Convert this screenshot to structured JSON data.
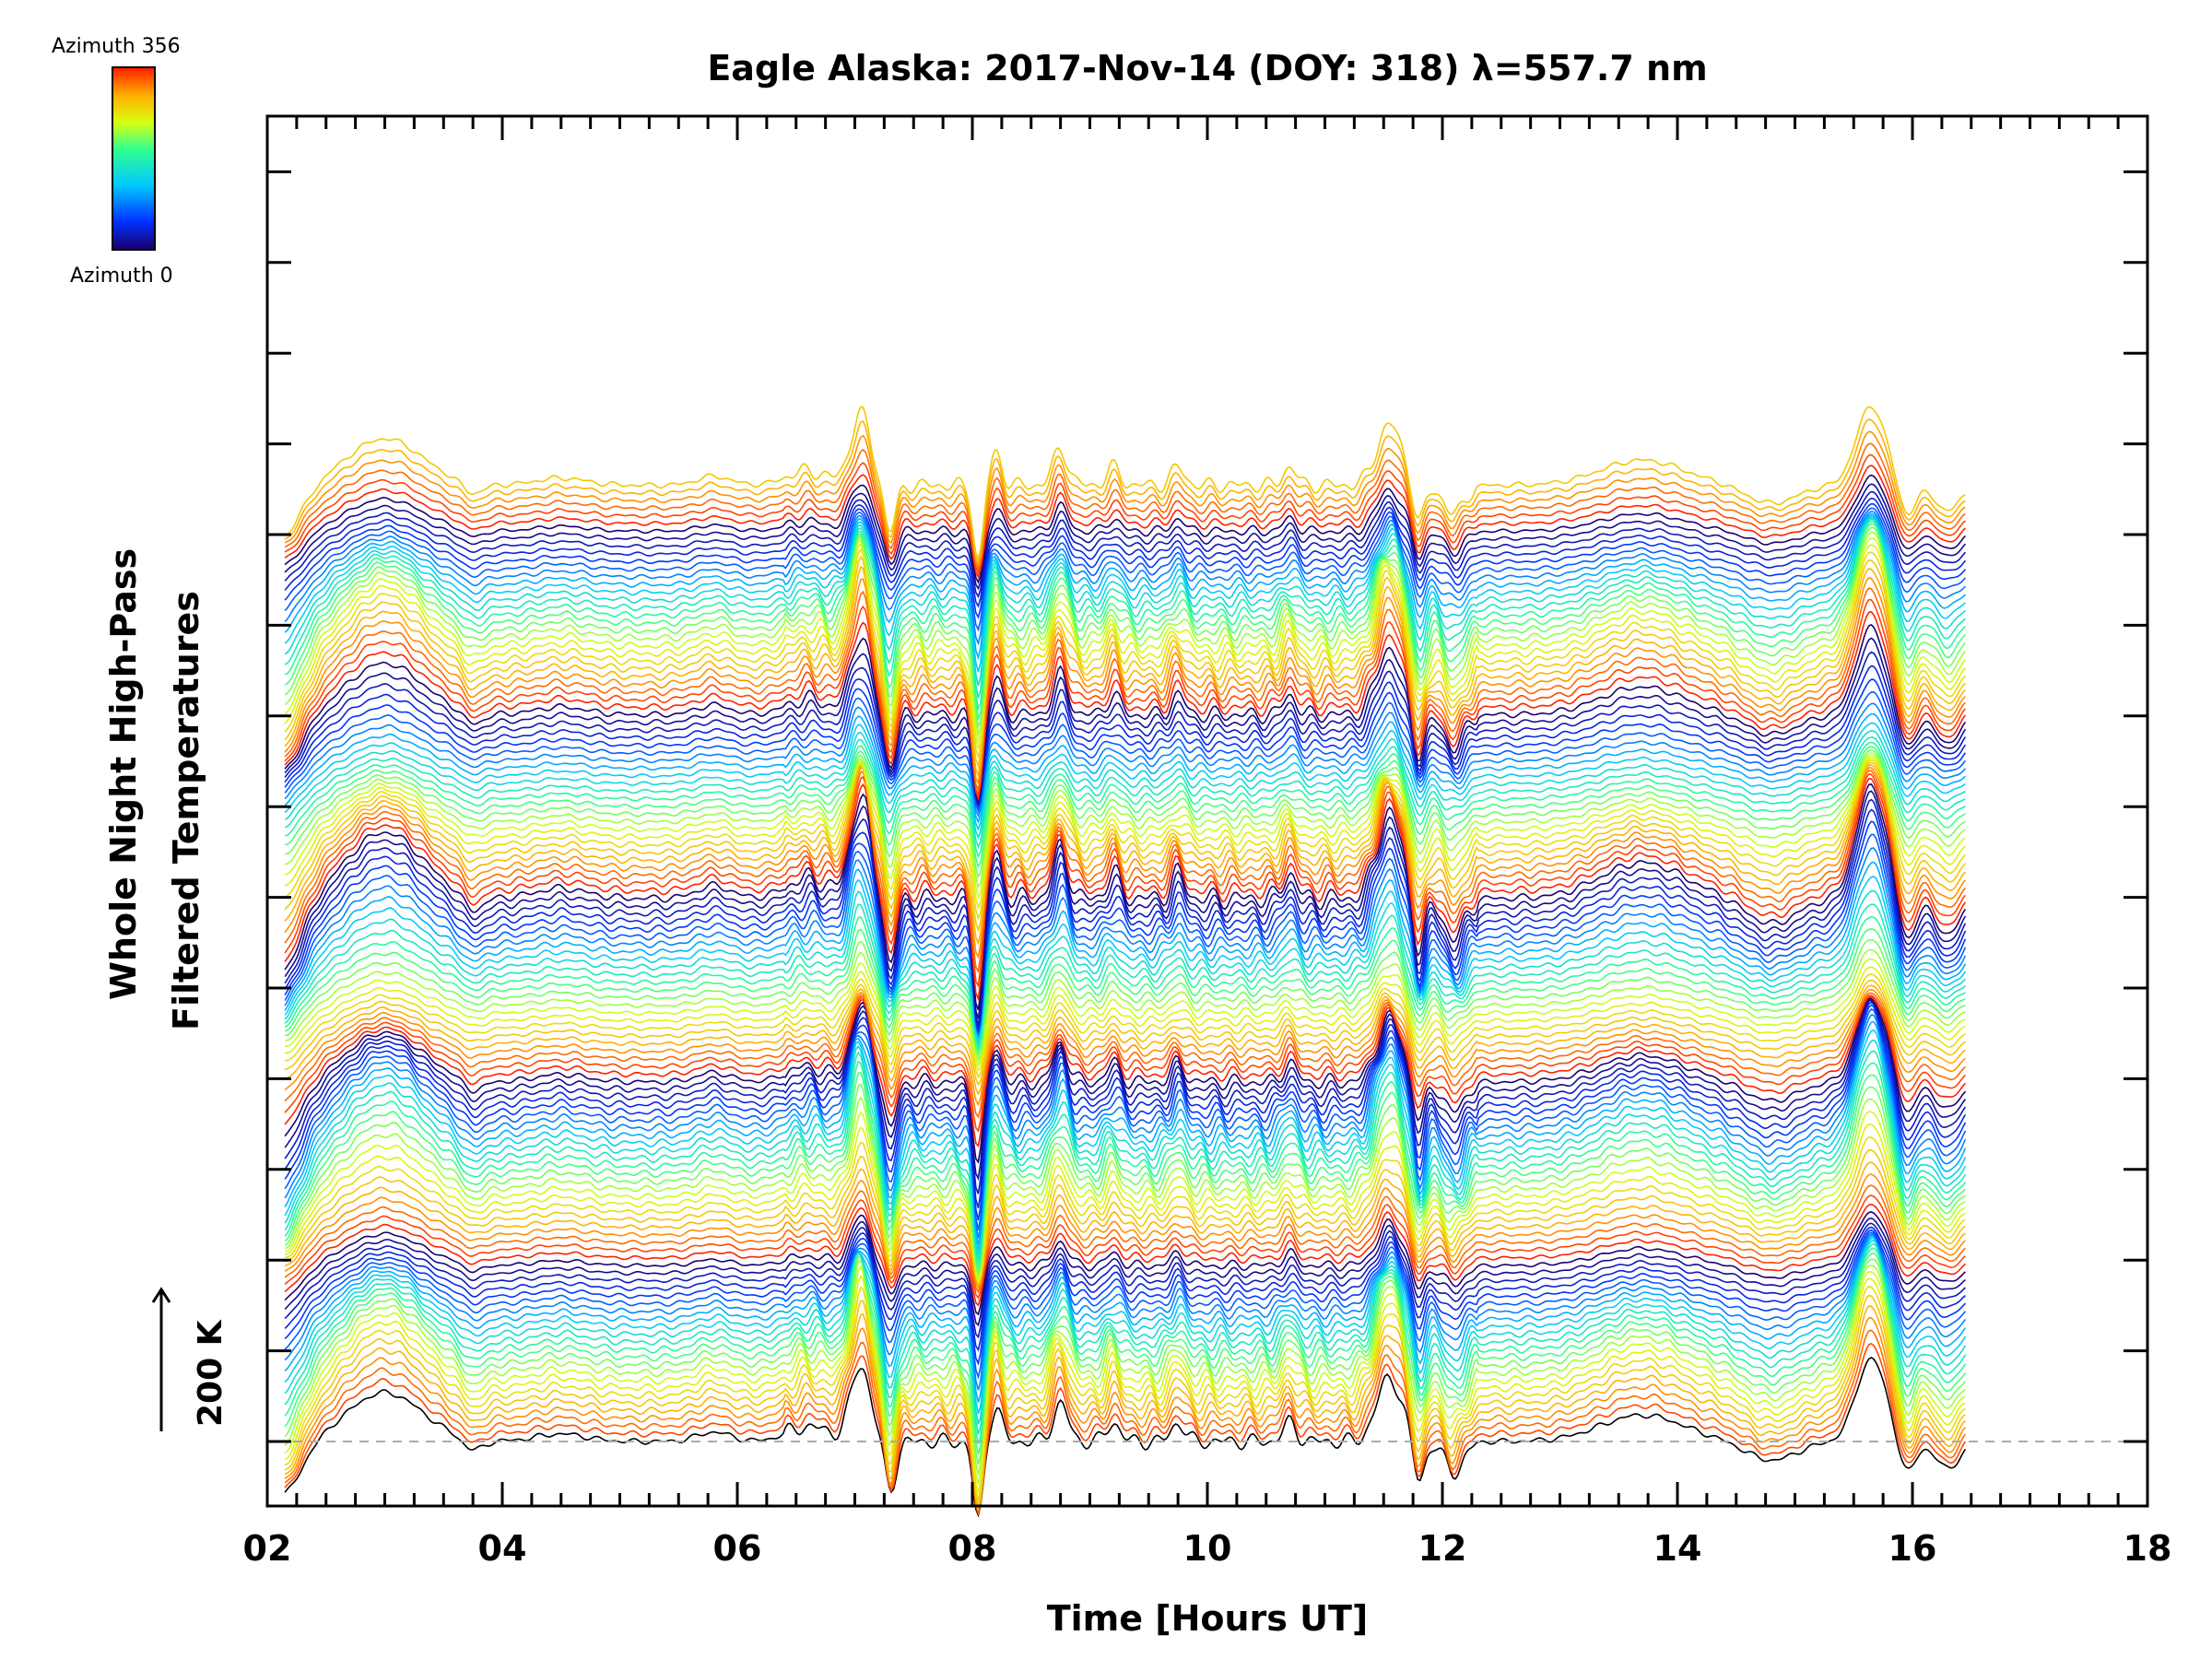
{
  "chart_data": {
    "type": "line",
    "title": "Eagle Alaska: 2017-Nov-14 (DOY: 318) λ=557.7 nm",
    "xlabel": "Time [Hours UT]",
    "ylabel_line1": "Whole Night High-Pass",
    "ylabel_line2": "Filtered Temperatures",
    "xlim": [
      2,
      18
    ],
    "x_tick_labels": [
      "02",
      "04",
      "06",
      "08",
      "10",
      "12",
      "14",
      "16",
      "18"
    ],
    "x_tick_values": [
      2,
      4,
      6,
      8,
      10,
      12,
      14,
      16,
      18
    ],
    "data_range": [
      2.15,
      16.45
    ],
    "scale_bar_label": "200 K",
    "baseline_dashed": true,
    "stack_count": 126,
    "colorbar": {
      "top_label": "Azimuth 356",
      "bottom_label": "Azimuth 0",
      "colors": [
        "#1a0070",
        "#0030ff",
        "#00c8ff",
        "#30ff90",
        "#d8ff10",
        "#ffb000",
        "#ff2000"
      ]
    },
    "feature_times": [
      3.0,
      3.8,
      5.8,
      6.5,
      7.05,
      7.3,
      8.05,
      8.2,
      8.75,
      9.2,
      11.55,
      11.8,
      12.1,
      13.7,
      15.65,
      15.95
    ],
    "notes_shape": "stacked offset traces, one per azimuth; peaks near 3.0, 7.05, 11.55, 15.65 h; sharp dips near 7.3, 8.05, 11.8, 12.1 h"
  }
}
